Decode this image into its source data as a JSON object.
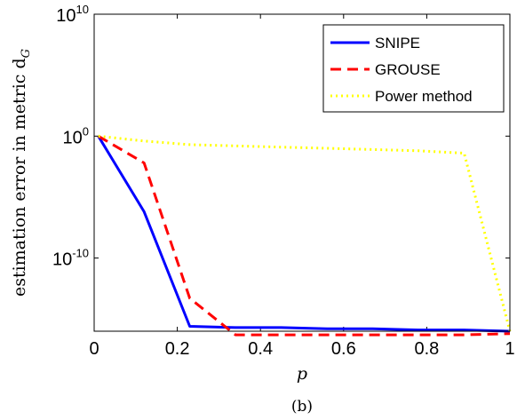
{
  "chart_data": {
    "type": "line",
    "xlabel": "p",
    "ylabel": "estimation error in metric d",
    "ylabel_subscript": "G",
    "caption": "(b)",
    "xlim": [
      0,
      1
    ],
    "ylim_log10": [
      -16,
      10
    ],
    "y_scale": "log",
    "x_ticks": [
      0,
      0.2,
      0.4,
      0.6,
      0.8,
      1
    ],
    "x_tick_labels": [
      "0",
      "0.2",
      "0.4",
      "0.6",
      "0.8",
      "1"
    ],
    "y_ticks_log10": [
      -10,
      0,
      10
    ],
    "y_tick_labels": [
      {
        "base": "10",
        "exp": "-10"
      },
      {
        "base": "10",
        "exp": "0"
      },
      {
        "base": "10",
        "exp": "10"
      }
    ],
    "grid": false,
    "legend_position": "top-right",
    "series": [
      {
        "name": "SNIPE",
        "color": "#0000ff",
        "dash": "solid",
        "x": [
          0.01,
          0.12,
          0.23,
          0.34,
          0.45,
          0.56,
          0.67,
          0.78,
          0.89,
          1.0
        ],
        "y_log10": [
          0.0,
          -6.2,
          -15.6,
          -15.7,
          -15.7,
          -15.8,
          -15.8,
          -15.9,
          -15.9,
          -16.0
        ]
      },
      {
        "name": "GROUSE",
        "color": "#ff0000",
        "dash": "dashed",
        "x": [
          0.01,
          0.12,
          0.23,
          0.34,
          0.45,
          0.56,
          0.67,
          0.78,
          0.89,
          1.0
        ],
        "y_log10": [
          0.0,
          -2.2,
          -13.3,
          -16.3,
          -16.3,
          -16.3,
          -16.3,
          -16.3,
          -16.3,
          -16.2
        ]
      },
      {
        "name": "Power method",
        "color": "#ffff00",
        "dash": "dotted",
        "x": [
          0.01,
          0.12,
          0.23,
          0.34,
          0.45,
          0.56,
          0.67,
          0.78,
          0.89,
          1.0
        ],
        "y_log10": [
          0.0,
          -0.4,
          -0.7,
          -0.8,
          -0.9,
          -1.0,
          -1.1,
          -1.2,
          -1.4,
          -16.0
        ]
      }
    ]
  }
}
